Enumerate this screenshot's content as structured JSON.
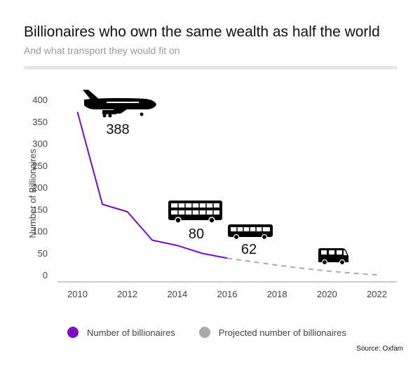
{
  "header": {
    "title": "Billionaires who own the same wealth as half the world",
    "subtitle": "And what transport they would fit on"
  },
  "chart_data": {
    "type": "line",
    "ylabel": "Number of Billionaires",
    "xlabel": "",
    "xlim": [
      2009.2,
      2022.8
    ],
    "ylim": [
      0,
      400
    ],
    "x_ticks": [
      2010,
      2012,
      2014,
      2016,
      2018,
      2020,
      2022
    ],
    "y_ticks": [
      0,
      50,
      100,
      150,
      200,
      250,
      300,
      350,
      400
    ],
    "grid": false,
    "legend_position": "bottom",
    "series": [
      {
        "name": "Number of billionaires",
        "color": "#7a0bc0",
        "style": "solid",
        "x": [
          2010,
          2011,
          2012,
          2013,
          2014,
          2015,
          2016
        ],
        "y": [
          372,
          161,
          144,
          79,
          67,
          49,
          38
        ]
      },
      {
        "name": "Projected number of billionaires",
        "color": "#a9a9a9",
        "style": "dashed",
        "x": [
          2016,
          2017,
          2018,
          2019,
          2020,
          2021,
          2022
        ],
        "y": [
          38,
          30,
          22,
          15,
          9,
          4,
          0
        ]
      }
    ],
    "annotations": [
      {
        "label": "388",
        "icon": "airplane-icon"
      },
      {
        "label": "80",
        "icon": "double-decker-bus-icon"
      },
      {
        "label": "62",
        "icon": "bus-icon"
      },
      {
        "label": "",
        "icon": "minibus-icon"
      }
    ]
  },
  "source": "Source: Oxfam"
}
